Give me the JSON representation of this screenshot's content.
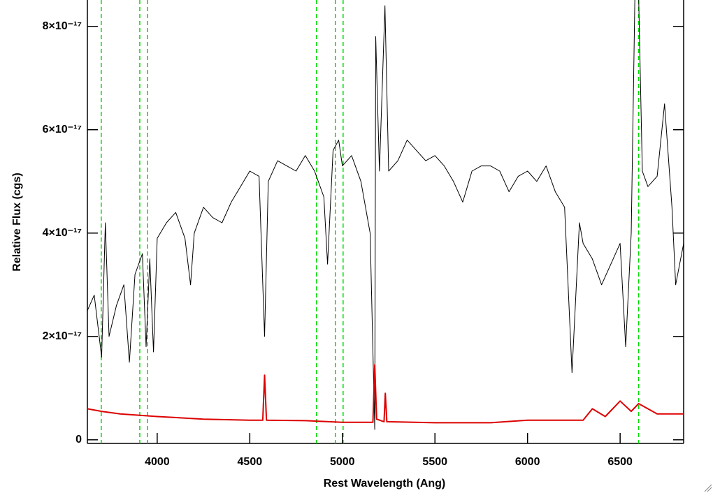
{
  "chart_data": {
    "type": "line",
    "x_label": "Rest Wavelength (Ang)",
    "y_label": "Relative Flux (cgs)",
    "xlim": [
      3623,
      6843
    ],
    "ylim": [
      -7e-19,
      8.51e-17
    ],
    "xticks": [
      4000,
      4500,
      5000,
      5500,
      6000,
      6500
    ],
    "yticks": [
      0,
      {
        "value": 2e-17,
        "label": "2×10⁻¹⁷"
      },
      {
        "value": 4e-17,
        "label": "4×10⁻¹⁷"
      },
      {
        "value": 6e-17,
        "label": "6×10⁻¹⁷"
      },
      {
        "value": 8e-17,
        "label": "8×10⁻¹⁷"
      }
    ],
    "vlines": {
      "color": "#00dd00",
      "x": [
        3698,
        3906,
        3948,
        4860,
        4962,
        5004,
        6600
      ]
    },
    "series": [
      {
        "color": "#000000",
        "x": [
          3623,
          3660,
          3700,
          3720,
          3740,
          3780,
          3820,
          3850,
          3880,
          3920,
          3940,
          3960,
          3980,
          4000,
          4050,
          4100,
          4150,
          4180,
          4200,
          4250,
          4300,
          4350,
          4400,
          4450,
          4500,
          4550,
          4580,
          4600,
          4650,
          4700,
          4750,
          4800,
          4850,
          4900,
          4920,
          4950,
          4980,
          5000,
          5050,
          5100,
          5150,
          5175,
          5180,
          5200,
          5230,
          5250,
          5300,
          5350,
          5400,
          5450,
          5500,
          5550,
          5600,
          5650,
          5700,
          5750,
          5800,
          5850,
          5900,
          5950,
          6000,
          6050,
          6100,
          6150,
          6200,
          6240,
          6280,
          6300,
          6350,
          6400,
          6450,
          6500,
          6530,
          6560,
          6580,
          6600,
          6620,
          6650,
          6700,
          6740,
          6780,
          6800,
          6843
        ],
        "values": [
          2.5e-17,
          2.8e-17,
          1.6e-17,
          4.2e-17,
          2e-17,
          2.6e-17,
          3e-17,
          1.5e-17,
          3.2e-17,
          3.6e-17,
          1.8e-17,
          3.5e-17,
          1.7e-17,
          3.9e-17,
          4.2e-17,
          4.4e-17,
          3.9e-17,
          3e-17,
          4e-17,
          4.5e-17,
          4.3e-17,
          4.2e-17,
          4.6e-17,
          4.9e-17,
          5.2e-17,
          5.1e-17,
          2e-17,
          5e-17,
          5.4e-17,
          5.3e-17,
          5.2e-17,
          5.5e-17,
          5.2e-17,
          4.7e-17,
          3.4e-17,
          5.6e-17,
          5.8e-17,
          5.3e-17,
          5.5e-17,
          5e-17,
          4e-17,
          2e-18,
          7.8e-17,
          5.2e-17,
          8.4e-17,
          5.2e-17,
          5.4e-17,
          5.8e-17,
          5.6e-17,
          5.4e-17,
          5.5e-17,
          5.3e-17,
          5e-17,
          4.6e-17,
          5.2e-17,
          5.3e-17,
          5.3e-17,
          5.2e-17,
          4.8e-17,
          5.1e-17,
          5.2e-17,
          5e-17,
          5.3e-17,
          4.8e-17,
          4.5e-17,
          1.3e-17,
          4.2e-17,
          3.8e-17,
          3.5e-17,
          3e-17,
          3.4e-17,
          3.8e-17,
          1.8e-17,
          4e-17,
          8.6e-17,
          8.6e-17,
          5.2e-17,
          4.9e-17,
          5.1e-17,
          6.5e-17,
          4.5e-17,
          3e-17,
          3.8e-17
        ]
      },
      {
        "color": "#dd0000",
        "x": [
          3623,
          3700,
          3800,
          4000,
          4250,
          4500,
          4570,
          4580,
          4590,
          4800,
          5000,
          5165,
          5175,
          5185,
          5225,
          5232,
          5240,
          5500,
          5800,
          6000,
          6300,
          6350,
          6420,
          6500,
          6560,
          6600,
          6700,
          6843
        ],
        "values": [
          6e-18,
          5.5e-18,
          5e-18,
          4.5e-18,
          4e-18,
          3.8e-18,
          3.8e-18,
          1.25e-17,
          3.8e-18,
          3.7e-18,
          3.4e-18,
          3.4e-18,
          1.45e-17,
          4e-18,
          3.5e-18,
          9e-18,
          3.5e-18,
          3.3e-18,
          3.3e-18,
          3.8e-18,
          3.8e-18,
          6e-18,
          4.5e-18,
          7.5e-18,
          5.5e-18,
          7e-18,
          5e-18,
          5e-18
        ]
      }
    ]
  }
}
